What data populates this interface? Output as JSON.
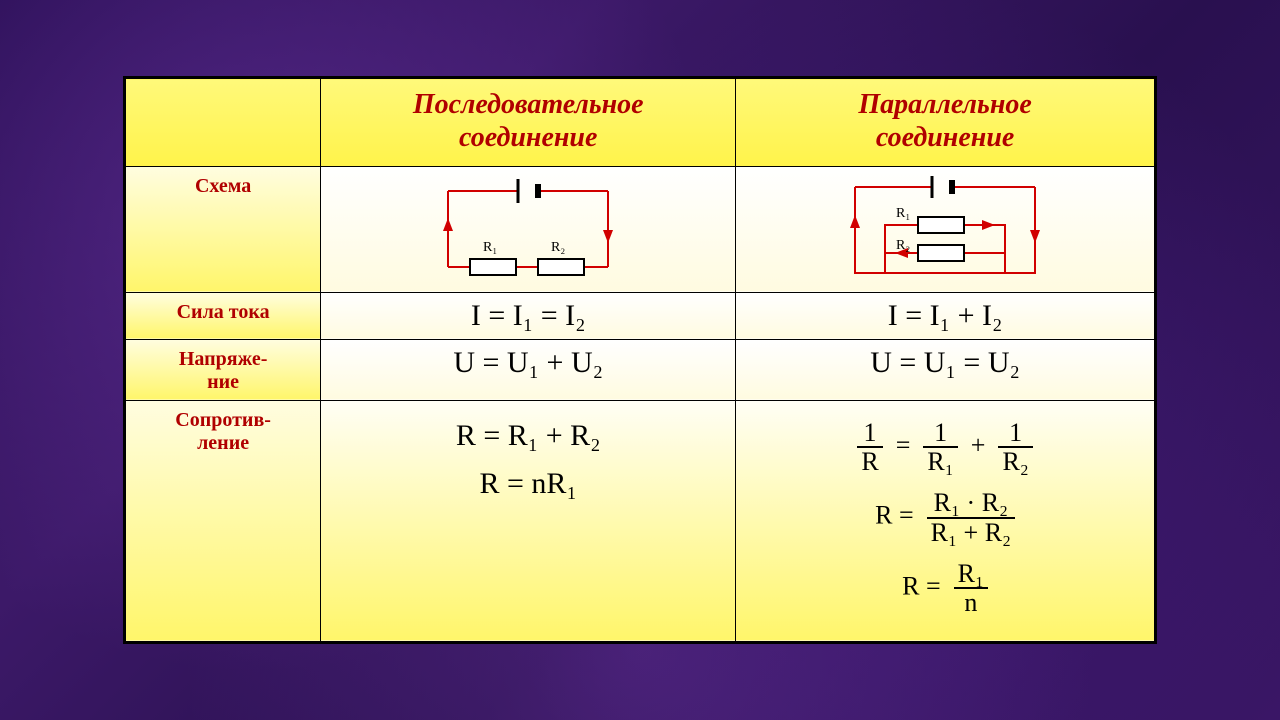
{
  "colors": {
    "header_text": "#b00000",
    "label_text": "#b00000",
    "formula_text": "#000000",
    "wire": "#d10000",
    "resistor_fill": "#ffffff",
    "resistor_stroke": "#000000",
    "bg_purple": "#3a1a6a",
    "cell_yellow_top": "#fffde0",
    "cell_yellow_bottom": "#fff66a"
  },
  "headers": {
    "series": "Последовательное\nсоединение",
    "parallel": "Параллельное\nсоединение"
  },
  "row_labels": {
    "schema": "Схема",
    "current": "Сила тока",
    "voltage": "Напряже-\nние",
    "resistance": "Сопротив-\nление"
  },
  "schema": {
    "series": {
      "r1": "R₁",
      "r2": "R₂"
    },
    "parallel": {
      "r1": "R₁",
      "r2": "R₂"
    }
  },
  "formulas": {
    "series": {
      "current": "I = I₁ = I₂",
      "voltage": "U = U₁ + U₂",
      "resistance_a": "R = R₁ + R₂",
      "resistance_b": "R = nR₁"
    },
    "parallel": {
      "current": "I = I₁ + I₂",
      "voltage": "U = U₁ = U₂",
      "resistance_a": {
        "lhs_n": "1",
        "lhs_d": "R",
        "t1_n": "1",
        "t1_d": "R₁",
        "t2_n": "1",
        "t2_d": "R₂",
        "op": "+"
      },
      "resistance_b": {
        "lhs": "R",
        "n": "R₁ · R₂",
        "d": "R₁ + R₂"
      },
      "resistance_c": {
        "lhs": "R",
        "n": "R₁",
        "d": "n"
      }
    }
  },
  "fontsizes": {
    "header": 28,
    "label": 20,
    "formula": 30,
    "schema_label": 14
  }
}
